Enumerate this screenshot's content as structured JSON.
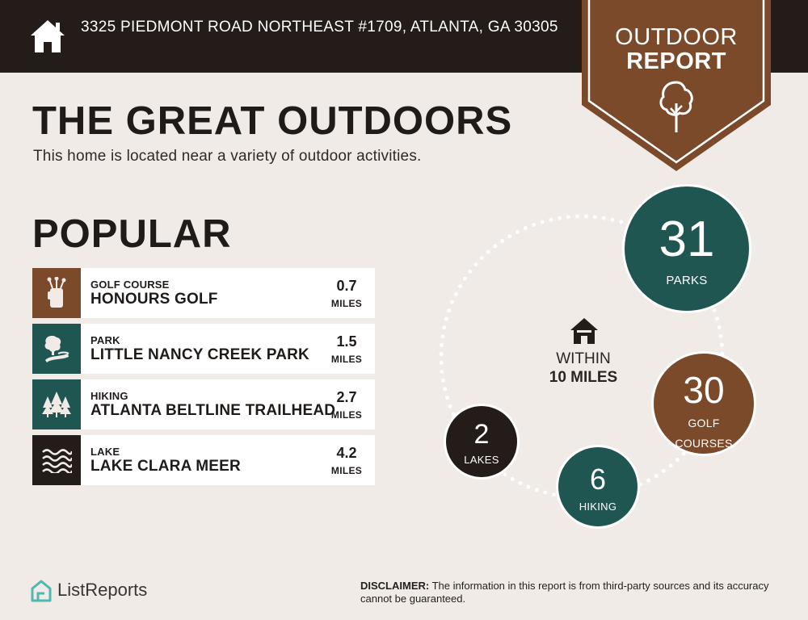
{
  "header": {
    "address": "3325 PIEDMONT ROAD NORTHEAST #1709, ATLANTA, GA 30305",
    "background_color": "#231c18"
  },
  "badge": {
    "line1": "OUTDOOR",
    "line2": "REPORT",
    "color": "#7b4a2b",
    "icon": "tree-icon"
  },
  "main": {
    "title": "THE GREAT OUTDOORS",
    "subtitle": "This home is located near a variety of outdoor activities."
  },
  "popular": {
    "heading": "POPULAR",
    "items": [
      {
        "category": "GOLF COURSE",
        "name": "HONOURS GOLF",
        "distance": "0.7",
        "unit": "MILES",
        "icon": "golf-bag-icon",
        "icon_bg": "#7b4a2b"
      },
      {
        "category": "PARK",
        "name": "LITTLE NANCY CREEK PARK",
        "distance": "1.5",
        "unit": "MILES",
        "icon": "park-icon",
        "icon_bg": "#1f5652"
      },
      {
        "category": "HIKING",
        "name": "ATLANTA BELTLINE TRAILHEAD",
        "distance": "2.7",
        "unit": "MILES",
        "icon": "pine-trees-icon",
        "icon_bg": "#1f5652"
      },
      {
        "category": "LAKE",
        "name": "LAKE CLARA MEER",
        "distance": "4.2",
        "unit": "MILES",
        "icon": "water-waves-icon",
        "icon_bg": "#231c18"
      }
    ]
  },
  "radius": {
    "within_line1": "WITHIN",
    "within_line2": "10 MILES",
    "icon": "home-icon"
  },
  "stats": {
    "parks": {
      "count": "31",
      "label": "PARKS",
      "color": "#1f5652"
    },
    "golf": {
      "count": "30",
      "label_line1": "GOLF",
      "label_line2": "COURSES",
      "color": "#7b4a2b"
    },
    "hiking": {
      "count": "6",
      "label": "HIKING",
      "color": "#1f5652"
    },
    "lakes": {
      "count": "2",
      "label": "LAKES",
      "color": "#231c18"
    }
  },
  "footer": {
    "brand": "ListReports",
    "brand_icon": "listreports-logo-icon",
    "disclaimer_label": "DISCLAIMER:",
    "disclaimer_text": " The information in this report is from third-party sources and its accuracy cannot be guaranteed."
  }
}
